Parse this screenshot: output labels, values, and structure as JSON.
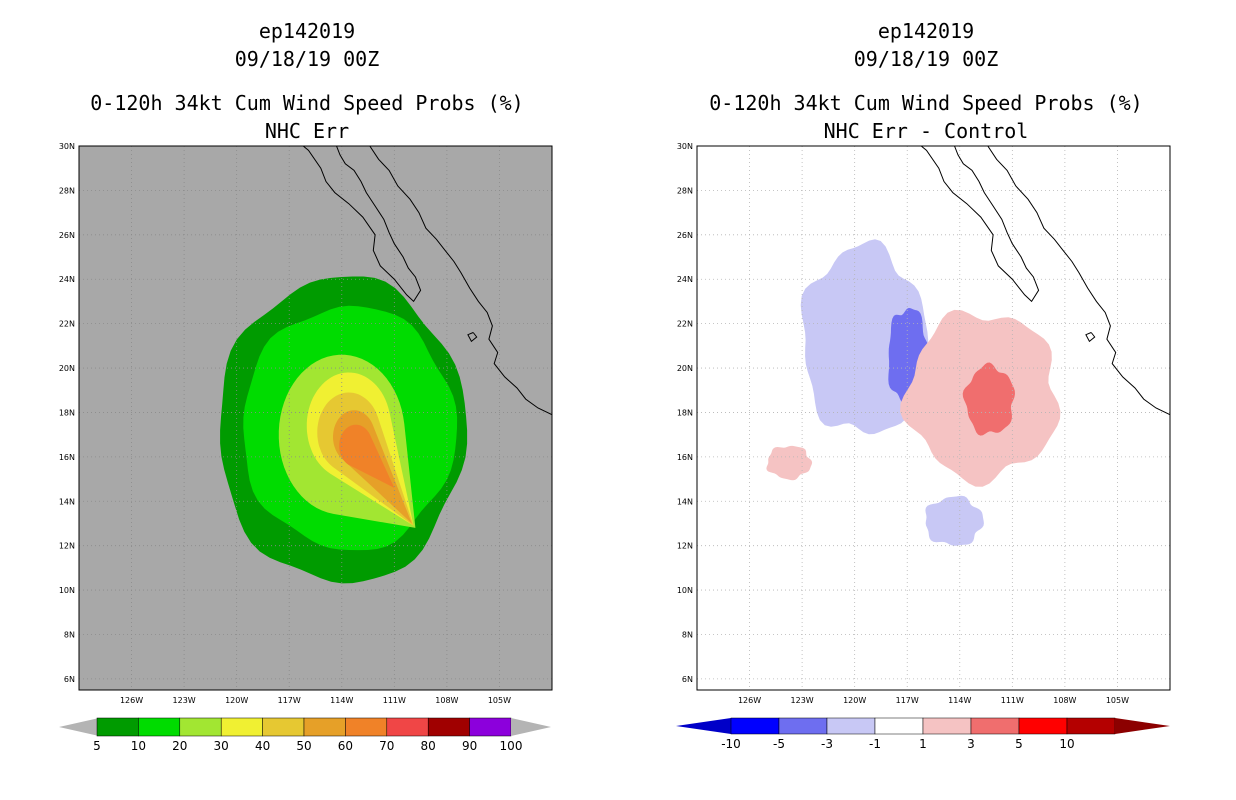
{
  "chart_data": [
    {
      "type": "contour-map",
      "title_lines": [
        "ep142019",
        "09/18/19 00Z",
        "0-120h 34kt Cum Wind Speed Probs (%)",
        "NHC Err"
      ],
      "xlabel": "",
      "ylabel": "",
      "lon_range": [
        -129,
        -102
      ],
      "lat_range": [
        5.5,
        30
      ],
      "lon_ticks": [
        "126W",
        "123W",
        "120W",
        "117W",
        "114W",
        "111W",
        "108W",
        "105W"
      ],
      "lat_ticks": [
        "30N",
        "28N",
        "26N",
        "24N",
        "22N",
        "20N",
        "18N",
        "16N",
        "14N",
        "12N",
        "10N",
        "8N",
        "6N"
      ],
      "background_color": "#a8a8a8",
      "colorbar": {
        "labels": [
          "5",
          "10",
          "20",
          "30",
          "40",
          "50",
          "60",
          "70",
          "80",
          "90",
          "100"
        ],
        "colors": [
          "#009b00",
          "#00dc00",
          "#a2e632",
          "#f0f032",
          "#e6c832",
          "#e6a028",
          "#f08228",
          "#f04646",
          "#a00000",
          "#8c00dc"
        ],
        "end_color": "#b4b4b4"
      },
      "contours": [
        {
          "level": 5,
          "color": "#009b00",
          "center": [
            -114.0,
            17.2
          ],
          "radius_lon": [
            6.8,
            7.3
          ],
          "radius_lat": [
            6.9,
            6.9
          ]
        },
        {
          "level": 10,
          "color": "#00dc00",
          "center": [
            -113.6,
            17.3
          ],
          "radius_lon": [
            6.2,
            6.0
          ],
          "radius_lat": [
            5.6,
            5.4
          ]
        },
        {
          "level": 20,
          "color": "#a2e632",
          "tip": [
            -109.8,
            12.8
          ],
          "center": [
            -114.0,
            17.0
          ],
          "radius": 3.6
        },
        {
          "level": 30,
          "color": "#f0f032",
          "tip": [
            -109.9,
            12.9
          ],
          "center": [
            -113.6,
            17.4
          ],
          "radius": 2.4
        },
        {
          "level": 40,
          "color": "#e6c832",
          "tip": [
            -109.9,
            12.9
          ],
          "center": [
            -113.6,
            17.1
          ],
          "radius": 1.8
        },
        {
          "level": 50,
          "color": "#e6a028",
          "tip": [
            -110.0,
            13.0
          ],
          "center": [
            -113.3,
            16.9
          ],
          "radius": 1.2
        },
        {
          "level": 60,
          "color": "#f08228",
          "tip": [
            -111.0,
            14.6
          ],
          "center": [
            -113.2,
            16.5
          ],
          "radius": 0.95
        }
      ]
    },
    {
      "type": "contour-map",
      "title_lines": [
        "ep142019",
        "09/18/19 00Z",
        "0-120h 34kt Cum Wind Speed Probs (%)",
        "NHC Err - Control"
      ],
      "xlabel": "",
      "ylabel": "",
      "lon_range": [
        -129,
        -102
      ],
      "lat_range": [
        5.5,
        30
      ],
      "lon_ticks": [
        "126W",
        "123W",
        "120W",
        "117W",
        "114W",
        "111W",
        "108W",
        "105W"
      ],
      "lat_ticks": [
        "30N",
        "28N",
        "26N",
        "24N",
        "22N",
        "20N",
        "18N",
        "16N",
        "14N",
        "12N",
        "10N",
        "8N",
        "6N"
      ],
      "background_color": "#ffffff",
      "colorbar": {
        "labels": [
          "-10",
          "-5",
          "-3",
          "-1",
          "1",
          "3",
          "5",
          "10"
        ],
        "colors": [
          "#0000c8",
          "#0000ff",
          "#6e6ef0",
          "#c8c8f5",
          "#ffffff",
          "#f5c3c3",
          "#f06e6e",
          "#ff0000",
          "#b40000",
          "#8c0000"
        ]
      },
      "contours": [
        {
          "level": -3,
          "color": "#c8c8f5",
          "region": "north-west negative",
          "lon": [
            -123,
            -116
          ],
          "lat": [
            17,
            25.5
          ]
        },
        {
          "level": -5,
          "color": "#6e6ef0",
          "region": "north-west core",
          "lon": [
            -118.1,
            -115.8
          ],
          "lat": [
            18.3,
            22.7
          ]
        },
        {
          "level": 3,
          "color": "#f5c3c3",
          "region": "south-east positive",
          "lon": [
            -117,
            -108.4
          ],
          "lat": [
            15,
            22.5
          ]
        },
        {
          "level": 5,
          "color": "#f06e6e",
          "region": "south-east core",
          "lon": [
            -113.7,
            -110.9
          ],
          "lat": [
            17,
            20.1
          ]
        },
        {
          "level": -3,
          "color": "#c8c8f5",
          "region": "south small negative",
          "lon": [
            -116,
            -112.7
          ],
          "lat": [
            12,
            14.2
          ]
        },
        {
          "level": 3,
          "color": "#f5c3c3",
          "region": "western specks",
          "lon": [
            -125,
            -122.5
          ],
          "lat": [
            15,
            16.5
          ]
        }
      ]
    }
  ]
}
